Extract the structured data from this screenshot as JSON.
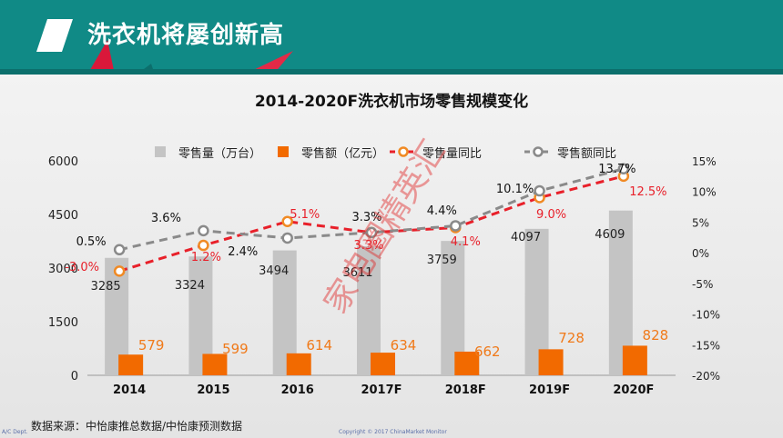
{
  "slide": {
    "title": "洗衣机将屡创新高"
  },
  "chart_data": {
    "type": "bar",
    "title": "2014-2020F洗衣机市场零售规模变化",
    "categories": [
      "2014",
      "2015",
      "2016",
      "2017F",
      "2018F",
      "2019F",
      "2020F"
    ],
    "y_left": {
      "ticks": [
        "0",
        "1500",
        "3000",
        "4500",
        "6000"
      ],
      "range": [
        0,
        6000
      ]
    },
    "y_right": {
      "ticks": [
        "-20%",
        "-15%",
        "-10%",
        "-5%",
        "0%",
        "5%",
        "10%",
        "15%"
      ],
      "range": [
        -20,
        15
      ]
    },
    "grid": false,
    "legend_position": "top",
    "series": [
      {
        "name": "零售量（万台）",
        "kind": "bar",
        "axis": "left",
        "color": "#c4c4c4",
        "values": [
          3285,
          3324,
          3494,
          3611,
          3759,
          4097,
          4609
        ],
        "labels": [
          "3285",
          "3324",
          "3494",
          "3611",
          "3759",
          "4097",
          "4609"
        ]
      },
      {
        "name": "零售额（亿元）",
        "kind": "bar",
        "axis": "left",
        "color": "#f26a00",
        "values": [
          579,
          599,
          614,
          634,
          662,
          728,
          828
        ],
        "labels": [
          "579",
          "599",
          "614",
          "634",
          "662",
          "728",
          "828"
        ]
      },
      {
        "name": "零售量同比",
        "kind": "line",
        "axis": "right",
        "color": "#e8202a",
        "marker_color": "#f08a24",
        "values": [
          -3.0,
          1.2,
          5.1,
          3.3,
          4.1,
          9.0,
          12.5
        ],
        "labels": [
          "-3.0%",
          "1.2%",
          "5.1%",
          "3.3%",
          "4.1%",
          "9.0%",
          "12.5%"
        ]
      },
      {
        "name": "零售额同比",
        "kind": "line",
        "axis": "right",
        "color": "#8a8a8a",
        "marker_color": "#8a8a8a",
        "values": [
          0.5,
          3.6,
          2.4,
          3.3,
          4.4,
          10.1,
          13.7
        ],
        "labels": [
          "0.5%",
          "3.6%",
          "2.4%",
          "3.3%",
          "4.4%",
          "10.1%",
          "13.7%"
        ]
      }
    ]
  },
  "footer": {
    "source": "数据来源：中怡康推总数据/中怡康预测数据",
    "dept": "A/C Dept.",
    "copyright": "Copyright © 2017 ChinaMarket Monitor"
  },
  "watermark": "家电圈精英汇",
  "colors": {
    "header": "#108a86",
    "accent": "#e8202a"
  }
}
